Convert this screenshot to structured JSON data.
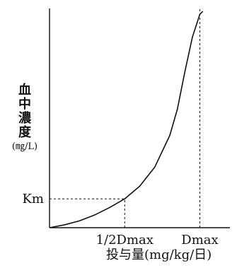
{
  "chart_data": {
    "type": "line",
    "title": "",
    "ylabel_chars": [
      "血",
      "中",
      "濃",
      "度"
    ],
    "ylabel_unit": "(㎎/L)",
    "xlabel": "投与量(mg/kg/日)",
    "y_tick_labels": [
      {
        "label": "Km",
        "value": 0.5
      }
    ],
    "x_tick_labels": [
      {
        "label": "1/2Dmax",
        "value": 0.5
      },
      {
        "label": "Dmax",
        "value": 1.0
      }
    ],
    "xlim": [
      0,
      1.2
    ],
    "ylim": [
      0,
      3.8
    ],
    "series": [
      {
        "x": [
          0,
          0.1,
          0.2,
          0.3,
          0.4,
          0.5,
          0.6,
          0.7,
          0.8,
          0.85,
          0.9,
          0.95,
          1.0,
          1.02
        ],
        "y": [
          0.0,
          0.05,
          0.12,
          0.22,
          0.35,
          0.5,
          0.72,
          1.05,
          1.6,
          2.05,
          2.7,
          3.3,
          3.7,
          3.75
        ],
        "dashed_from_index": 12
      }
    ],
    "reference_lines": [
      {
        "kind": "horizontal",
        "y": 0.5,
        "x_from": 0,
        "x_to": 0.5,
        "style": "dashed"
      },
      {
        "kind": "vertical",
        "x": 0.5,
        "y_from": 0,
        "y_to": 0.5,
        "style": "dashed"
      },
      {
        "kind": "vertical",
        "x": 1.0,
        "y_from": 0,
        "y_to": 3.8,
        "style": "dashed",
        "asymptote": true
      }
    ],
    "grid": false,
    "legend": "none",
    "colors": {
      "line": "#111111",
      "axis": "#111111"
    }
  }
}
